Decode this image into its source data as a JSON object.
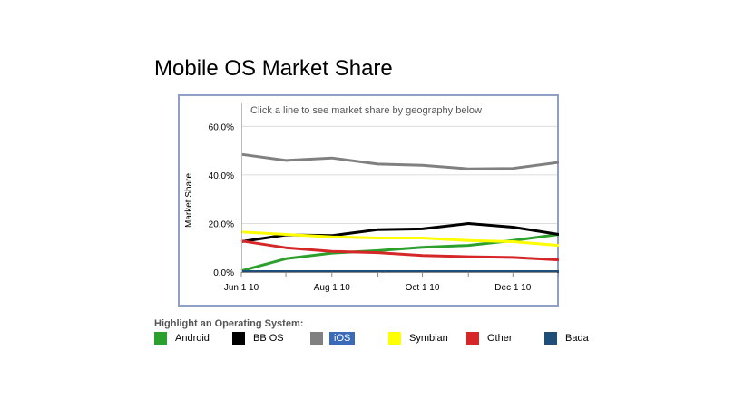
{
  "chart_data": {
    "type": "line",
    "title": "Mobile OS Market Share",
    "hint": "Click a line to see market share by geography below",
    "ylabel": "Market Share",
    "ylim": [
      0,
      65
    ],
    "yticks": [
      "0.0%",
      "20.0%",
      "40.0%",
      "60.0%"
    ],
    "ytick_values": [
      0,
      20,
      40,
      60
    ],
    "x": [
      "2010-06-01",
      "2010-07-01",
      "2010-08-01",
      "2010-09-01",
      "2010-10-01",
      "2010-11-01",
      "2010-12-01",
      "2011-01-01"
    ],
    "xlim": [
      "2010-06-01",
      "2011-01-01"
    ],
    "xticks": [
      "Jun 1 10",
      "Aug 1 10",
      "Oct 1 10",
      "Dec 1 10"
    ],
    "xtick_values": [
      "2010-06-01",
      "2010-08-01",
      "2010-10-01",
      "2010-12-01"
    ],
    "grid": true,
    "series": [
      {
        "name": "Android",
        "color": "#2ca02c",
        "values": [
          0.5,
          5.5,
          7.8,
          8.8,
          10.2,
          11.0,
          13.0,
          15.5
        ]
      },
      {
        "name": "BB OS",
        "color": "#000000",
        "values": [
          12.5,
          15.3,
          15.0,
          17.5,
          17.8,
          20.0,
          18.5,
          15.5
        ]
      },
      {
        "name": "iOS",
        "color": "#808080",
        "values": [
          48.5,
          46.0,
          47.0,
          44.5,
          44.0,
          42.5,
          42.7,
          45.2
        ]
      },
      {
        "name": "Symbian",
        "color": "#ffff00",
        "values": [
          16.5,
          15.5,
          14.5,
          14.0,
          14.0,
          13.0,
          12.5,
          11.0
        ]
      },
      {
        "name": "Other",
        "color": "#d62728",
        "values": [
          12.8,
          10.0,
          8.5,
          8.0,
          6.8,
          6.3,
          6.0,
          5.0
        ]
      },
      {
        "name": "Bada",
        "color": "#1f4e79",
        "values": [
          0.2,
          0.2,
          0.2,
          0.2,
          0.2,
          0.2,
          0.2,
          0.2
        ]
      }
    ]
  },
  "legend": {
    "heading": "Highlight an Operating System:",
    "selected": "iOS"
  }
}
